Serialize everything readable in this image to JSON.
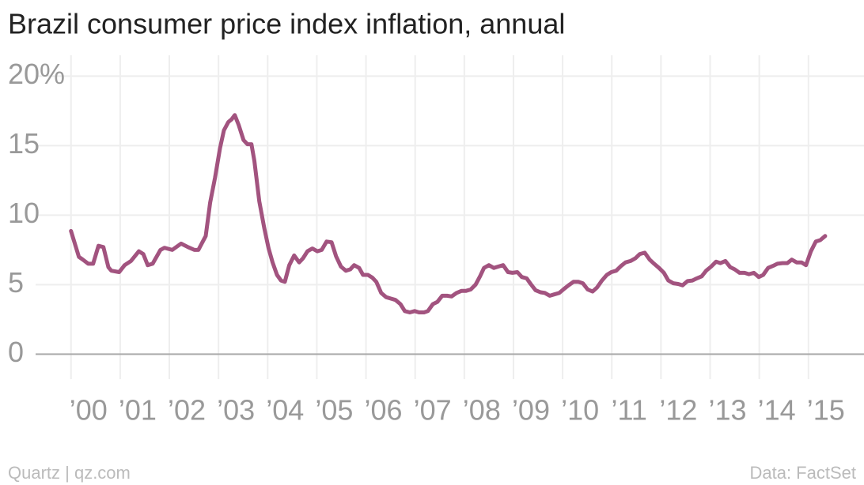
{
  "chart_data": {
    "type": "line",
    "title": "Brazil consumer price index inflation, annual",
    "source": "Data: FactSet",
    "credit": "Quartz | qz.com",
    "xlim": [
      1999.28,
      2016.13
    ],
    "ylim": [
      -1.8,
      21.5
    ],
    "xticks": [
      {
        "value": 2000,
        "label": "’00"
      },
      {
        "value": 2001,
        "label": "’01"
      },
      {
        "value": 2002,
        "label": "’02"
      },
      {
        "value": 2003,
        "label": "’03"
      },
      {
        "value": 2004,
        "label": "’04"
      },
      {
        "value": 2005,
        "label": "’05"
      },
      {
        "value": 2006,
        "label": "’06"
      },
      {
        "value": 2007,
        "label": "’07"
      },
      {
        "value": 2008,
        "label": "’08"
      },
      {
        "value": 2009,
        "label": "’09"
      },
      {
        "value": 2010,
        "label": "’10"
      },
      {
        "value": 2011,
        "label": "’11"
      },
      {
        "value": 2012,
        "label": "’12"
      },
      {
        "value": 2013,
        "label": "’13"
      },
      {
        "value": 2014,
        "label": "’14"
      },
      {
        "value": 2015,
        "label": "’15"
      }
    ],
    "yticks": [
      0,
      5,
      10,
      15,
      {
        "value": 20,
        "label": "20%"
      }
    ],
    "grid": true,
    "series": [
      {
        "name": "Brazil CPI",
        "color": "#a2537f",
        "x": [
          2000.0,
          2000.16,
          2000.24,
          2000.35,
          2000.45,
          2000.56,
          2000.66,
          2000.76,
          2000.82,
          2000.98,
          2001.09,
          2001.22,
          2001.38,
          2001.47,
          2001.56,
          2001.66,
          2001.82,
          2001.9,
          2002.06,
          2002.24,
          2002.38,
          2002.51,
          2002.59,
          2002.74,
          2002.83,
          2002.93,
          2003.03,
          2003.11,
          2003.2,
          2003.27,
          2003.33,
          2003.41,
          2003.51,
          2003.59,
          2003.67,
          2003.73,
          2003.83,
          2003.93,
          2004.02,
          2004.1,
          2004.19,
          2004.27,
          2004.35,
          2004.44,
          2004.54,
          2004.64,
          2004.72,
          2004.81,
          2004.91,
          2005.01,
          2005.1,
          2005.2,
          2005.3,
          2005.39,
          2005.49,
          2005.59,
          2005.68,
          2005.76,
          2005.86,
          2005.94,
          2006.04,
          2006.13,
          2006.21,
          2006.31,
          2006.41,
          2006.5,
          2006.6,
          2006.7,
          2006.79,
          2006.89,
          2006.99,
          2007.08,
          2007.18,
          2007.26,
          2007.36,
          2007.45,
          2007.55,
          2007.65,
          2007.74,
          2007.84,
          2007.94,
          2008.03,
          2008.13,
          2008.23,
          2008.32,
          2008.4,
          2008.5,
          2008.6,
          2008.69,
          2008.79,
          2008.89,
          2008.98,
          2009.08,
          2009.17,
          2009.27,
          2009.35,
          2009.45,
          2009.55,
          2009.64,
          2009.74,
          2009.83,
          2009.93,
          2010.03,
          2010.12,
          2010.22,
          2010.32,
          2010.41,
          2010.51,
          2010.61,
          2010.7,
          2010.8,
          2010.9,
          2010.99,
          2011.09,
          2011.19,
          2011.28,
          2011.38,
          2011.48,
          2011.57,
          2011.67,
          2011.77,
          2011.86,
          2011.96,
          2012.06,
          2012.15,
          2012.25,
          2012.35,
          2012.44,
          2012.54,
          2012.64,
          2012.73,
          2012.83,
          2012.92,
          2013.02,
          2013.12,
          2013.21,
          2013.31,
          2013.41,
          2013.5,
          2013.6,
          2013.7,
          2013.79,
          2013.89,
          2013.99,
          2014.08,
          2014.18,
          2014.28,
          2014.37,
          2014.47,
          2014.57,
          2014.66,
          2014.76,
          2014.86,
          2014.95,
          2015.05,
          2015.15,
          2015.24,
          2015.34
        ],
        "values": [
          8.86,
          7.0,
          6.8,
          6.5,
          6.5,
          7.8,
          7.7,
          6.25,
          6.0,
          5.9,
          6.4,
          6.7,
          7.4,
          7.2,
          6.4,
          6.5,
          7.5,
          7.65,
          7.5,
          7.95,
          7.7,
          7.5,
          7.5,
          8.5,
          10.9,
          12.7,
          14.8,
          16.1,
          16.7,
          16.9,
          17.2,
          16.5,
          15.4,
          15.1,
          15.1,
          13.9,
          11.0,
          9.1,
          7.6,
          6.6,
          5.7,
          5.3,
          5.2,
          6.4,
          7.1,
          6.6,
          6.9,
          7.4,
          7.6,
          7.4,
          7.5,
          8.1,
          8.05,
          7.05,
          6.3,
          6.0,
          6.1,
          6.4,
          6.2,
          5.7,
          5.7,
          5.5,
          5.2,
          4.4,
          4.1,
          4.0,
          3.9,
          3.6,
          3.1,
          3.0,
          3.1,
          3.0,
          3.0,
          3.1,
          3.6,
          3.75,
          4.2,
          4.2,
          4.15,
          4.4,
          4.55,
          4.55,
          4.65,
          5.0,
          5.6,
          6.2,
          6.4,
          6.2,
          6.3,
          6.4,
          5.9,
          5.85,
          5.9,
          5.55,
          5.45,
          5.05,
          4.6,
          4.45,
          4.4,
          4.2,
          4.3,
          4.4,
          4.7,
          4.95,
          5.2,
          5.2,
          5.1,
          4.65,
          4.5,
          4.8,
          5.3,
          5.7,
          5.9,
          6.0,
          6.35,
          6.6,
          6.7,
          6.9,
          7.2,
          7.3,
          6.8,
          6.5,
          6.2,
          5.85,
          5.3,
          5.1,
          5.05,
          4.95,
          5.25,
          5.3,
          5.45,
          5.6,
          6.0,
          6.3,
          6.65,
          6.55,
          6.7,
          6.25,
          6.1,
          5.85,
          5.85,
          5.75,
          5.85,
          5.55,
          5.7,
          6.2,
          6.35,
          6.5,
          6.55,
          6.55,
          6.8,
          6.6,
          6.6,
          6.4,
          7.4,
          8.1,
          8.2,
          8.5
        ]
      }
    ]
  }
}
